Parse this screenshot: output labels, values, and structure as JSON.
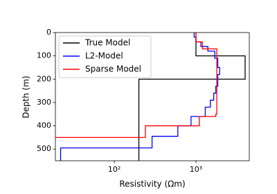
{
  "chart_data": {
    "type": "line",
    "x_label": "Resistivity (Ωm)",
    "y_label": "Depth (m)",
    "x_log": true,
    "y_inverted": true,
    "xlim": [
      19,
      4500
    ],
    "ylim": [
      550,
      0
    ],
    "xticks": [
      {
        "value": 100,
        "label": "10²"
      },
      {
        "value": 1000,
        "label": "10³"
      }
    ],
    "yticks": [
      0,
      100,
      200,
      300,
      400,
      500
    ],
    "legend": "upper left",
    "series": [
      {
        "name": "True Model",
        "color": "#000000",
        "x": [
          1000,
          1000,
          4000,
          4000,
          200,
          200
        ],
        "values": [
          0,
          100,
          100,
          200,
          200,
          550
        ]
      },
      {
        "name": "L2-Model",
        "color": "#0000ff",
        "x": [
          950,
          950,
          1000,
          1000,
          1150,
          1150,
          1400,
          1400,
          1700,
          1700,
          1850,
          1850,
          1950,
          1950,
          1850,
          1850,
          1750,
          1750,
          1650,
          1650,
          1500,
          1500,
          1300,
          1300,
          870,
          870,
          600,
          600,
          290,
          290,
          22,
          22
        ],
        "values": [
          0,
          20,
          20,
          40,
          40,
          60,
          60,
          80,
          80,
          110,
          110,
          150,
          150,
          180,
          180,
          230,
          230,
          260,
          260,
          290,
          290,
          320,
          320,
          360,
          360,
          400,
          400,
          445,
          445,
          495,
          495,
          550
        ]
      },
      {
        "name": "Sparse Model",
        "color": "#ff0000",
        "x": [
          1000,
          1000,
          1200,
          1200,
          1800,
          1800,
          1750,
          1750,
          1100,
          1100,
          240,
          240,
          19
        ],
        "values": [
          0,
          40,
          40,
          70,
          70,
          350,
          350,
          360,
          360,
          400,
          400,
          450,
          450
        ]
      }
    ]
  }
}
